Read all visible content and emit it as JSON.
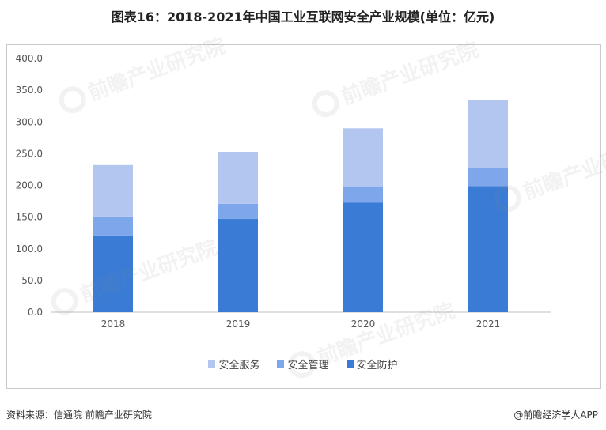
{
  "title": "图表16：2018-2021年中国工业互联网安全产业规模(单位：亿元)",
  "source": "资料来源：信通院 前瞻产业研究院",
  "brand": "@前瞻经济学人APP",
  "watermark": "前瞻产业研究院",
  "chart_data": {
    "type": "bar",
    "stacked": true,
    "title": "图表16：2018-2021年中国工业互联网安全产业规模(单位：亿元)",
    "xlabel": "",
    "ylabel": "",
    "categories": [
      "2018",
      "2019",
      "2020",
      "2021"
    ],
    "ylim": [
      0,
      400
    ],
    "yticks": [
      "0.0",
      "50.0",
      "100.0",
      "150.0",
      "200.0",
      "250.0",
      "300.0",
      "350.0",
      "400.0"
    ],
    "grid": false,
    "legend_position": "bottom",
    "series": [
      {
        "name": "安全防护",
        "color": "#3a7bd5",
        "values": [
          121,
          147,
          173,
          199
        ]
      },
      {
        "name": "安全管理",
        "color": "#7ea6ea",
        "values": [
          30,
          24,
          25,
          29
        ]
      },
      {
        "name": "安全服务",
        "color": "#b3c6f0",
        "values": [
          81,
          82,
          92,
          107
        ]
      }
    ]
  }
}
